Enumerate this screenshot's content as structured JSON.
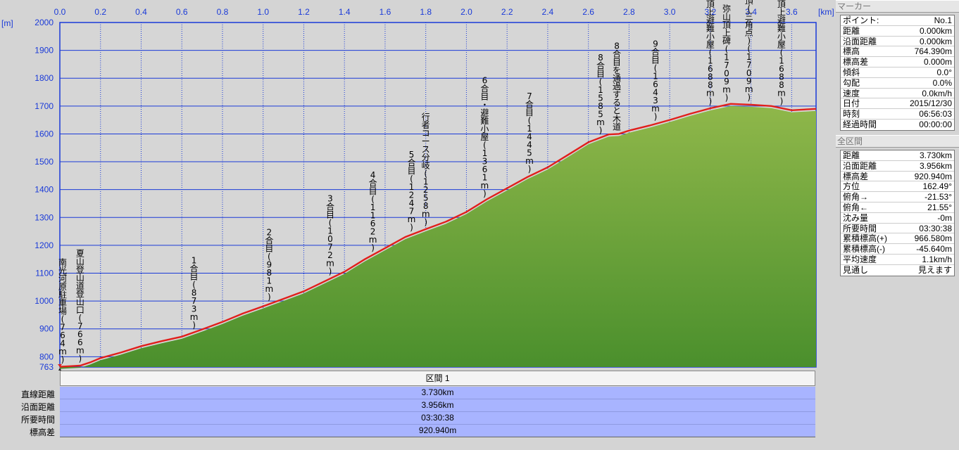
{
  "chart_data": {
    "type": "area",
    "x_unit": "[km]",
    "y_unit": "[m]",
    "xlim": [
      0.0,
      3.72
    ],
    "ylim": [
      763,
      2000
    ],
    "x_ticks": [
      "0.0",
      "0.2",
      "0.4",
      "0.6",
      "0.8",
      "1.0",
      "1.2",
      "1.4",
      "1.6",
      "1.8",
      "2.0",
      "2.2",
      "2.4",
      "2.6",
      "2.8",
      "3.0",
      "3.2",
      "3.4",
      "3.6"
    ],
    "y_ticks": [
      "2000",
      "1900",
      "1800",
      "1700",
      "1600",
      "1500",
      "1400",
      "1300",
      "1200",
      "1100",
      "1000",
      "900",
      "800",
      "763"
    ],
    "grid": true,
    "series": [
      {
        "color": "#e0201c",
        "x": [
          0.0,
          0.05,
          0.1,
          0.15,
          0.2,
          0.3,
          0.4,
          0.5,
          0.6,
          0.7,
          0.8,
          0.9,
          1.0,
          1.1,
          1.2,
          1.3,
          1.4,
          1.5,
          1.6,
          1.7,
          1.8,
          1.9,
          2.0,
          2.1,
          2.2,
          2.3,
          2.4,
          2.5,
          2.6,
          2.7,
          2.75,
          2.8,
          2.9,
          3.0,
          3.1,
          3.2,
          3.3,
          3.4,
          3.5,
          3.6,
          3.72
        ],
        "y": [
          764,
          766,
          768,
          780,
          795,
          815,
          838,
          856,
          872,
          898,
          925,
          955,
          981,
          1008,
          1035,
          1070,
          1105,
          1150,
          1190,
          1230,
          1258,
          1285,
          1320,
          1365,
          1405,
          1445,
          1480,
          1525,
          1570,
          1598,
          1600,
          1612,
          1630,
          1650,
          1672,
          1692,
          1708,
          1705,
          1700,
          1685,
          1690
        ]
      }
    ],
    "waypoints": [
      {
        "x": 0.0,
        "label": "南光河原駐車場(764m)"
      },
      {
        "x": 0.1,
        "label": "夏山登山道登山口(766m)"
      },
      {
        "x": 0.66,
        "label": "1合目(873m)"
      },
      {
        "x": 1.03,
        "label": "2合目(981m)"
      },
      {
        "x": 1.33,
        "label": "3合目(1072m)"
      },
      {
        "x": 1.54,
        "label": "4合目(1162m)"
      },
      {
        "x": 1.73,
        "label": "5合目(1247m)"
      },
      {
        "x": 1.8,
        "label": "行者コース分岐(1258m)"
      },
      {
        "x": 2.09,
        "label": "6合目・避難小屋(1361m)"
      },
      {
        "x": 2.31,
        "label": "7合目(1445m)"
      },
      {
        "x": 2.66,
        "label": "8合目(1585m)"
      },
      {
        "x": 2.74,
        "label": "8合目を通過すると木道"
      },
      {
        "x": 2.93,
        "label": "9合目(1643m)"
      },
      {
        "x": 3.2,
        "label": "頂上避難小屋(1688m)"
      },
      {
        "x": 3.28,
        "label": "弥山頂上碑(1709m)"
      },
      {
        "x": 3.39,
        "label": "弥山頂(三角点)(1709m)"
      },
      {
        "x": 3.55,
        "label": "頂上避難小屋(1688m)"
      }
    ]
  },
  "marker_panel": {
    "title": "マーカー",
    "rows": [
      {
        "label": "ポイント:",
        "value": "No.1"
      },
      {
        "label": "距離",
        "value": "0.000km"
      },
      {
        "label": "沿面距離",
        "value": "0.000km"
      },
      {
        "label": "標高",
        "value": "764.390m"
      },
      {
        "label": "標高差",
        "value": "0.000m"
      },
      {
        "label": "傾斜",
        "value": "0.0°"
      },
      {
        "label": "勾配",
        "value": "0.0%"
      },
      {
        "label": "速度",
        "value": "0.0km/h"
      },
      {
        "label": "日付",
        "value": "2015/12/30"
      },
      {
        "label": "時刻",
        "value": "06:56:03"
      },
      {
        "label": "経過時間",
        "value": "00:00:00"
      }
    ]
  },
  "total_panel": {
    "title": "全区間",
    "rows": [
      {
        "label": "距離",
        "value": "3.730km"
      },
      {
        "label": "沿面距離",
        "value": "3.956km"
      },
      {
        "label": "標高差",
        "value": "920.940m"
      },
      {
        "label": "方位",
        "value": "162.49°"
      },
      {
        "label": "俯角→",
        "value": "-21.53°"
      },
      {
        "label": "俯角←",
        "value": "21.55°"
      },
      {
        "label": "沈み量",
        "value": "-0m"
      },
      {
        "label": "所要時間",
        "value": "03:30:38"
      },
      {
        "label": "累積標高(+)",
        "value": "966.580m"
      },
      {
        "label": "累積標高(-)",
        "value": "-45.640m"
      },
      {
        "label": "平均速度",
        "value": "1.1km/h"
      },
      {
        "label": "見通し",
        "value": "見えます"
      }
    ]
  },
  "section": {
    "header": "区間 1",
    "rows": [
      {
        "label": "直線距離",
        "value": "3.730km"
      },
      {
        "label": "沿面距離",
        "value": "3.956km"
      },
      {
        "label": "所要時間",
        "value": "03:30:38"
      },
      {
        "label": "標高差",
        "value": "920.940m"
      }
    ]
  }
}
